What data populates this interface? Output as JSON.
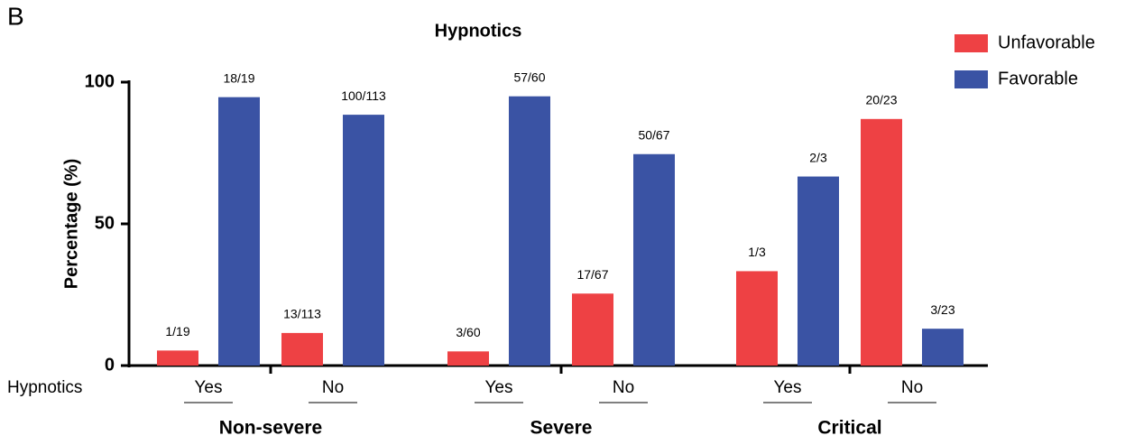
{
  "panel_label": "B",
  "chart_data": {
    "type": "bar",
    "title": "Hypnotics",
    "ylabel": "Percentage (%)",
    "x_row_label": "Hypnotics",
    "groups": [
      "Non-severe",
      "Severe",
      "Critical"
    ],
    "categories": [
      "Yes",
      "No",
      "Yes",
      "No",
      "Yes",
      "No"
    ],
    "series": [
      {
        "name": "Unfavorable",
        "color": "#ee4144",
        "values": [
          5.3,
          11.5,
          5.0,
          25.4,
          33.3,
          87.0
        ],
        "value_labels": [
          "1/19",
          "13/113",
          "3/60",
          "17/67",
          "1/3",
          "20/23"
        ]
      },
      {
        "name": "Favorable",
        "color": "#3a53a4",
        "values": [
          94.7,
          88.5,
          95.0,
          74.6,
          66.7,
          13.0
        ],
        "value_labels": [
          "18/19",
          "100/113",
          "57/60",
          "50/67",
          "2/3",
          "3/23"
        ]
      }
    ],
    "ylim": [
      0,
      100
    ],
    "yticks": [
      0,
      50,
      100
    ],
    "legend": "top-right"
  }
}
